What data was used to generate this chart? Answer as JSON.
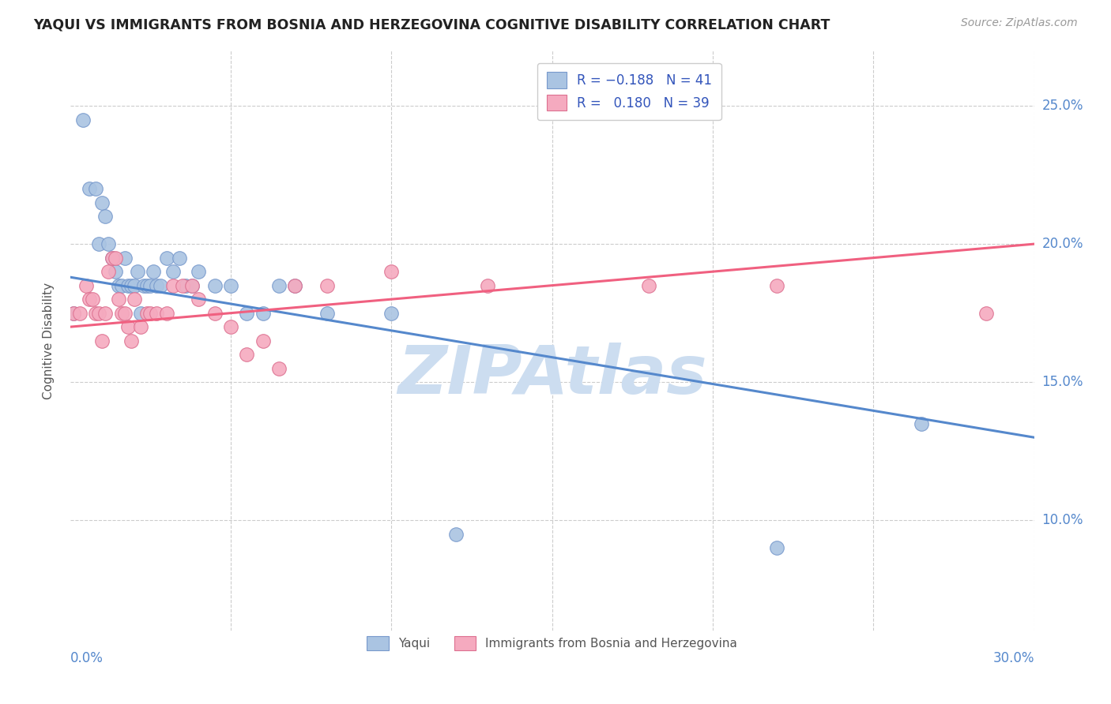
{
  "title": "YAQUI VS IMMIGRANTS FROM BOSNIA AND HERZEGOVINA COGNITIVE DISABILITY CORRELATION CHART",
  "source": "Source: ZipAtlas.com",
  "ylabel": "Cognitive Disability",
  "x_range": [
    0.0,
    0.3
  ],
  "y_range": [
    0.06,
    0.27
  ],
  "color_yaqui": "#aac4e2",
  "color_bosnia": "#f5aabf",
  "color_yaqui_line": "#5588cc",
  "color_bosnia_line": "#f06080",
  "color_yaqui_edge": "#7799cc",
  "color_bosnia_edge": "#dd7090",
  "color_title": "#222222",
  "color_source": "#999999",
  "color_axis_labels": "#5588cc",
  "color_grid": "#cccccc",
  "color_watermark": "#ccddf0",
  "yaqui_x": [
    0.001,
    0.004,
    0.006,
    0.008,
    0.009,
    0.01,
    0.011,
    0.012,
    0.013,
    0.014,
    0.015,
    0.016,
    0.017,
    0.018,
    0.019,
    0.02,
    0.021,
    0.022,
    0.023,
    0.024,
    0.025,
    0.026,
    0.027,
    0.028,
    0.03,
    0.032,
    0.034,
    0.036,
    0.038,
    0.04,
    0.045,
    0.05,
    0.055,
    0.06,
    0.065,
    0.07,
    0.08,
    0.1,
    0.12,
    0.22,
    0.265
  ],
  "yaqui_y": [
    0.175,
    0.245,
    0.22,
    0.22,
    0.2,
    0.215,
    0.21,
    0.2,
    0.195,
    0.19,
    0.185,
    0.185,
    0.195,
    0.185,
    0.185,
    0.185,
    0.19,
    0.175,
    0.185,
    0.185,
    0.185,
    0.19,
    0.185,
    0.185,
    0.195,
    0.19,
    0.195,
    0.185,
    0.185,
    0.19,
    0.185,
    0.185,
    0.175,
    0.175,
    0.185,
    0.185,
    0.175,
    0.175,
    0.095,
    0.09,
    0.135
  ],
  "bosnia_x": [
    0.001,
    0.003,
    0.005,
    0.006,
    0.007,
    0.008,
    0.009,
    0.01,
    0.011,
    0.012,
    0.013,
    0.014,
    0.015,
    0.016,
    0.017,
    0.018,
    0.019,
    0.02,
    0.022,
    0.024,
    0.025,
    0.027,
    0.03,
    0.032,
    0.035,
    0.038,
    0.04,
    0.045,
    0.05,
    0.055,
    0.06,
    0.065,
    0.07,
    0.08,
    0.1,
    0.13,
    0.18,
    0.22,
    0.285
  ],
  "bosnia_y": [
    0.175,
    0.175,
    0.185,
    0.18,
    0.18,
    0.175,
    0.175,
    0.165,
    0.175,
    0.19,
    0.195,
    0.195,
    0.18,
    0.175,
    0.175,
    0.17,
    0.165,
    0.18,
    0.17,
    0.175,
    0.175,
    0.175,
    0.175,
    0.185,
    0.185,
    0.185,
    0.18,
    0.175,
    0.17,
    0.16,
    0.165,
    0.155,
    0.185,
    0.185,
    0.19,
    0.185,
    0.185,
    0.185,
    0.175
  ],
  "yline_x": [
    0.0,
    0.3
  ],
  "yline_y": [
    0.188,
    0.13
  ],
  "bline_x": [
    0.0,
    0.3
  ],
  "bline_y": [
    0.17,
    0.2
  ]
}
